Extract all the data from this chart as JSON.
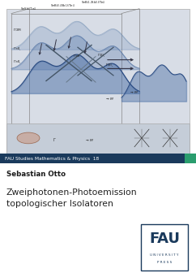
{
  "bg_color": "#f5f5f5",
  "cover_bg": "#ffffff",
  "top_image_bg": "#d8dde6",
  "series_bar_color": "#1a3a5c",
  "series_bar_accent": "#2a9d6e",
  "series_text": "FAU Studies Mathematics & Physics  18",
  "series_text_color": "#ffffff",
  "author": "Sebastian Otto",
  "title_line1": "Zweiphotonen-Photoemission",
  "title_line2": "topologischer Isolatoren",
  "title_color": "#222222",
  "author_color": "#1a1a1a",
  "fau_box_color": "#1a3a5c",
  "fau_text": "FAU",
  "university_text": "U N I V E R S I T Y",
  "press_text": "P R E S S"
}
